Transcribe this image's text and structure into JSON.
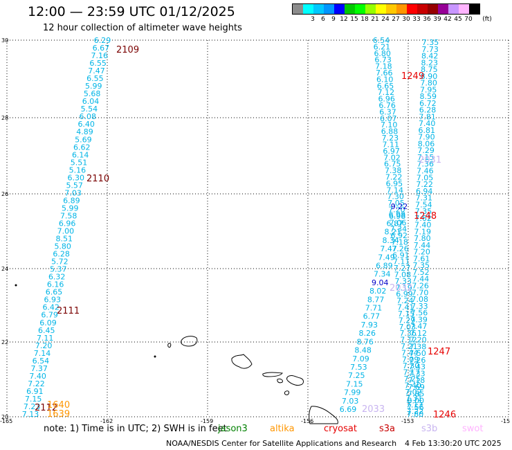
{
  "header": {
    "title": "12:00 — 23:59 UTC 01/12/2025",
    "subtitle": "12 hour collection of altimeter wave heights"
  },
  "legend": {
    "unit": "(ft)",
    "items": [
      {
        "label": "",
        "color": "#8c8c8c"
      },
      {
        "label": "3",
        "color": "#00ffff"
      },
      {
        "label": "6",
        "color": "#00c8ff"
      },
      {
        "label": "9",
        "color": "#0096ff"
      },
      {
        "label": "12",
        "color": "#0000ff"
      },
      {
        "label": "15",
        "color": "#00c800"
      },
      {
        "label": "18",
        "color": "#00ff00"
      },
      {
        "label": "21",
        "color": "#96ff00"
      },
      {
        "label": "24",
        "color": "#ffff00"
      },
      {
        "label": "27",
        "color": "#ffc800"
      },
      {
        "label": "30",
        "color": "#ff9600"
      },
      {
        "label": "33",
        "color": "#ff0000"
      },
      {
        "label": "36",
        "color": "#c80000"
      },
      {
        "label": "39",
        "color": "#960000"
      },
      {
        "label": "42",
        "color": "#960096"
      },
      {
        "label": "45",
        "color": "#c896ff"
      },
      {
        "label": "70",
        "color": "#ffb4ff"
      },
      {
        "label": "",
        "color": "#000000"
      }
    ]
  },
  "axes": {
    "lat_labels": [
      "30",
      "28",
      "26",
      "24",
      "22",
      "20"
    ],
    "lon_labels": [
      "-165",
      "-162",
      "-159",
      "-156",
      "-153",
      "-15"
    ]
  },
  "colors": {
    "cyan_value": "#00b4e6",
    "pass_2109_2112": "#7a0000",
    "pass_1249": "#e60000",
    "pass_2031": "#c8b4f0",
    "pass_1640": "#ff9600",
    "blue_value": "#0000c8"
  },
  "tracks": {
    "track_a": {
      "values": [
        "6.29",
        "6.67",
        "7.16",
        "6.55",
        "7.47",
        "6.55",
        "5.99",
        "5.68",
        "6.04",
        "5.54",
        "6.08",
        "6.40",
        "4.89",
        "5.69",
        "6.62",
        "6.14",
        "5.51",
        "5.16",
        "6.30",
        "5.57",
        "7.03",
        "6.89",
        "5.99",
        "7.58",
        "6.96",
        "7.00",
        "8.51",
        "5.80",
        "6.28",
        "5.72",
        "5.37",
        "6.32",
        "6.16",
        "6.65",
        "6.93",
        "6.42",
        "6.79",
        "6.09",
        "6.45",
        "7.11",
        "7.20",
        "7.14",
        "6.54",
        "7.37",
        "7.40",
        "7.22",
        "6.91",
        "7.15",
        "7.23",
        "7.13"
      ]
    },
    "track_b": {
      "values": [
        "7.35",
        "7.73",
        "8.42",
        "8.23",
        "8.75",
        "8.90",
        "7.80",
        "7.95",
        "8.59",
        "6.72",
        "6.28",
        "7.81",
        "7.40",
        "6.81",
        "7.90",
        "8.06",
        "7.29",
        "7.15",
        "7.36",
        "7.46",
        "7.05",
        "7.22",
        "6.94",
        "7.31",
        "7.54",
        "7.35",
        "7.62",
        "7.40",
        "7.19",
        "7.80",
        "7.44",
        "7.20",
        "7.61",
        "7.35",
        "7.52",
        "7.44",
        "7.26",
        "7.70",
        "7.08",
        "7.33",
        "7.56",
        "7.39",
        "7.47",
        "7.12",
        "7.20",
        "7.38",
        "7.50",
        "7.26",
        "7.43",
        "7.33",
        "7.18",
        "7.69",
        "7.85",
        "8.00",
        "7.56",
        "7.80"
      ]
    },
    "track_c": {
      "values": [
        "6.54",
        "6.21",
        "6.80",
        "6.73",
        "7.18",
        "7.66",
        "6.10",
        "6.65",
        "7.12",
        "6.96",
        "6.76",
        "6.37",
        "6.07",
        "7.10",
        "6.88",
        "7.23",
        "7.11",
        "6.97",
        "7.02",
        "6.75",
        "7.38",
        "7.22",
        "6.95",
        "7.14",
        "7.30",
        "7.05",
        "7.20",
        "6.98",
        "7.06",
        "7.34",
        "6.92",
        "7.18",
        "7.26",
        "6.91",
        "7.11",
        "7.27",
        "7.08",
        "7.33",
        "7.19",
        "6.99",
        "7.24",
        "7.41",
        "7.15",
        "7.29",
        "7.03",
        "7.36",
        "7.12",
        "7.21",
        "7.44",
        "7.09",
        "7.30",
        "7.17",
        "7.25",
        "7.40",
        "7.02",
        "7.31",
        "7.13",
        "7.22"
      ]
    },
    "track_d": {
      "values": [
        "9.22",
        "6.98",
        "6.87",
        "8.21",
        "8.34",
        "7.47",
        "7.49",
        "6.89",
        "7.34",
        "9.04",
        "8.02",
        "8.77",
        "7.71",
        "6.77",
        "7.93",
        "8.26",
        "8.76",
        "8.48",
        "7.09",
        "7.53",
        "7.25",
        "7.15",
        "7.99",
        "7.03",
        "6.69"
      ]
    }
  },
  "pass_labels": [
    {
      "id": "2109",
      "color_key": "pass_2109_2112"
    },
    {
      "id": "2110",
      "color_key": "pass_2109_2112"
    },
    {
      "id": "2111",
      "color_key": "pass_2109_2112"
    },
    {
      "id": "2112",
      "color_key": "pass_2109_2112"
    },
    {
      "id": "1640",
      "color_key": "pass_1640"
    },
    {
      "id": "1639",
      "color_key": "pass_1640"
    },
    {
      "id": "1249",
      "color_key": "pass_1249"
    },
    {
      "id": "1248",
      "color_key": "pass_1249"
    },
    {
      "id": "1247",
      "color_key": "pass_1249"
    },
    {
      "id": "1246",
      "color_key": "pass_1249"
    },
    {
      "id": "2031",
      "color_key": "pass_2031"
    },
    {
      "id": "2032",
      "color_key": "pass_2031"
    },
    {
      "id": "2033",
      "color_key": "pass_2031"
    }
  ],
  "footer": {
    "note": "note:  1) Time is in UTC; 2) SWH is in feet",
    "satellites": [
      {
        "name": "jason3",
        "color": "#008000"
      },
      {
        "name": "altika",
        "color": "#ff9600"
      },
      {
        "name": "cryosat",
        "color": "#e60000"
      },
      {
        "name": "s3a",
        "color": "#c80000"
      },
      {
        "name": "s3b",
        "color": "#c8b4f0"
      },
      {
        "name": "swot",
        "color": "#ffb4ff"
      }
    ],
    "credit": "NOAA/NESDIS Center for Satellite Applications and Research",
    "generated": "4 Feb 13:30:20 UTC 2025"
  }
}
